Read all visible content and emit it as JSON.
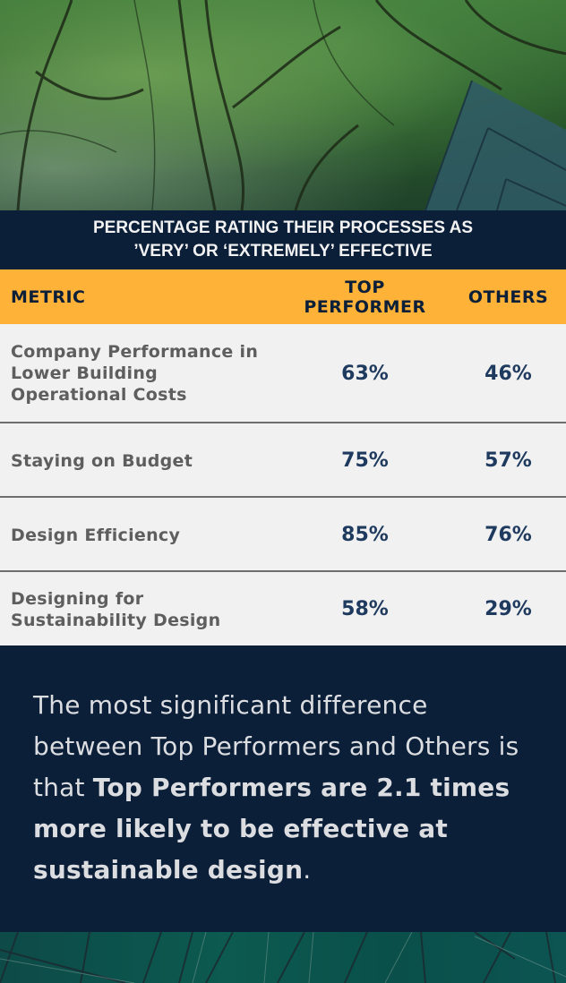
{
  "header": {
    "title_line1": "PERCENTAGE RATING THEIR PROCESSES AS",
    "title_line2": "’VERY’ OR ‘EXTREMELY’ EFFECTIVE"
  },
  "table": {
    "columns": {
      "metric": "METRIC",
      "top_line1": "TOP",
      "top_line2": "PERFORMER",
      "others": "OTHERS"
    },
    "rows": [
      {
        "label_lines": [
          "Company Performance in",
          "Lower Building",
          "Operational Costs"
        ],
        "top": "63%",
        "others": "46%"
      },
      {
        "label_lines": [
          "Staying on Budget"
        ],
        "top": "75%",
        "others": "57%"
      },
      {
        "label_lines": [
          "Design Efficiency"
        ],
        "top": "85%",
        "others": "76%"
      },
      {
        "label_lines": [
          "Designing for",
          "Sustainability Design"
        ],
        "top": "58%",
        "others": "29%"
      }
    ]
  },
  "summary": {
    "plain_part": "The most significant difference between Top Performers and Others is that ",
    "bold_part": "Top Performers are 2.1 times more likely to be effective at sustainable design",
    "end_part": "."
  },
  "colors": {
    "navy": "#0b1f39",
    "accent_orange": "#ffb238",
    "value_blue": "#1f3a5f",
    "label_gray": "#5e5e5e",
    "row_bg": "#f1f1f1"
  }
}
